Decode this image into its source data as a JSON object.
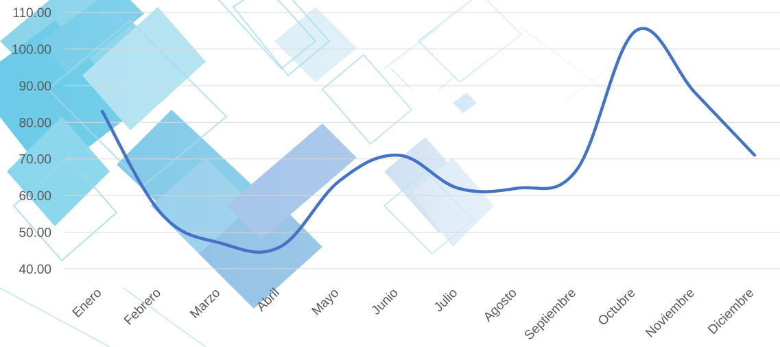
{
  "chart_data": {
    "type": "line",
    "smooth": true,
    "title": "",
    "xlabel": "",
    "ylabel": "",
    "categories": [
      "Enero",
      "Febrero",
      "Marzo",
      "Abril",
      "Mayo",
      "Junio",
      "Julio",
      "Agosto",
      "Septiembre",
      "Octubre",
      "Noviembre",
      "Diciembre"
    ],
    "series": [
      {
        "color": "#4472c4",
        "values": [
          83,
          55,
          47,
          46,
          64,
          71,
          62,
          62,
          67,
          105,
          88,
          71
        ]
      }
    ],
    "y_ticks": [
      "40.00",
      "50.00",
      "60.00",
      "70.00",
      "80.00",
      "90.00",
      "100.00",
      "110.00"
    ],
    "ylim": [
      35,
      113
    ],
    "grid": true,
    "legend": "none",
    "background": "abstract blue geometric pattern"
  }
}
